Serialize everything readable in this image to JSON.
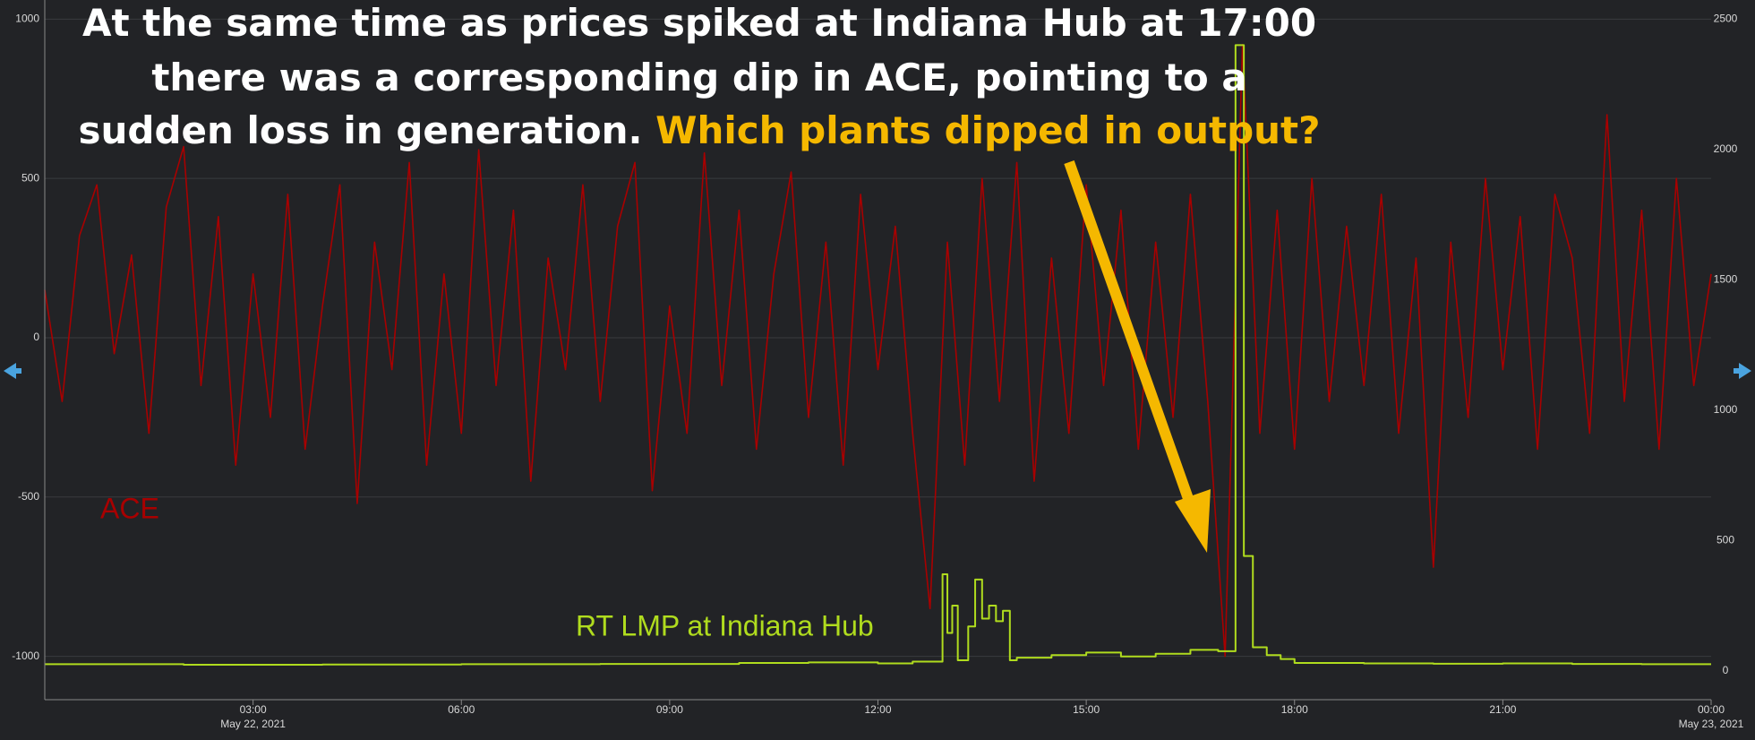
{
  "chart_data": {
    "type": "line",
    "annotation": {
      "lines": [
        "At the same time as prices spiked at Indiana Hub at 17:00",
        "there was a corresponding dip in ACE, pointing to a",
        "sudden loss in generation."
      ],
      "highlight": "Which plants dipped in output?",
      "highlight_color": "#f5b800"
    },
    "xlim": [
      0,
      24
    ],
    "xticks": [
      {
        "value": 3,
        "label": "03:00"
      },
      {
        "value": 6,
        "label": "06:00"
      },
      {
        "value": 9,
        "label": "09:00"
      },
      {
        "value": 12,
        "label": "12:00"
      },
      {
        "value": 15,
        "label": "15:00"
      },
      {
        "value": 18,
        "label": "18:00"
      },
      {
        "value": 21,
        "label": "21:00"
      },
      {
        "value": 24,
        "label": "00:00"
      }
    ],
    "xtick_sublabels": [
      {
        "value": 3,
        "label": "May 22, 2021"
      },
      {
        "value": 24,
        "label": "May 23, 2021"
      }
    ],
    "ylim": [
      -1136,
      1060
    ],
    "yticks": [
      -1000,
      -500,
      0,
      500,
      1000
    ],
    "y2lim": [
      -111,
      2573
    ],
    "y2ticks": [
      0,
      500,
      1000,
      1500,
      2000,
      2500
    ],
    "grid": true,
    "series": [
      {
        "name": "ACE",
        "color": "#a80000",
        "axis": "y",
        "step": false,
        "x": [
          0,
          0.25,
          0.5,
          0.75,
          1,
          1.25,
          1.5,
          1.75,
          2,
          2.25,
          2.5,
          2.75,
          3,
          3.25,
          3.5,
          3.75,
          4,
          4.25,
          4.5,
          4.75,
          5,
          5.25,
          5.5,
          5.75,
          6,
          6.25,
          6.5,
          6.75,
          7,
          7.25,
          7.5,
          7.75,
          8,
          8.25,
          8.5,
          8.75,
          9,
          9.25,
          9.5,
          9.75,
          10,
          10.25,
          10.5,
          10.75,
          11,
          11.25,
          11.5,
          11.75,
          12,
          12.25,
          12.5,
          12.75,
          13,
          13.25,
          13.5,
          13.75,
          14,
          14.25,
          14.5,
          14.75,
          15,
          15.25,
          15.5,
          15.75,
          16,
          16.25,
          16.5,
          16.75,
          17,
          17.25,
          17.5,
          17.75,
          18,
          18.25,
          18.5,
          18.75,
          19,
          19.25,
          19.5,
          19.75,
          20,
          20.25,
          20.5,
          20.75,
          21,
          21.25,
          21.5,
          21.75,
          22,
          22.25,
          22.5,
          22.75,
          23,
          23.25,
          23.5,
          23.75,
          24
        ],
        "values": [
          150,
          -200,
          320,
          480,
          -50,
          260,
          -300,
          410,
          600,
          -150,
          380,
          -400,
          200,
          -250,
          450,
          -350,
          100,
          480,
          -520,
          300,
          -100,
          550,
          -400,
          200,
          -300,
          590,
          -150,
          400,
          -450,
          250,
          -100,
          480,
          -200,
          350,
          550,
          -480,
          100,
          -300,
          580,
          -150,
          400,
          -350,
          200,
          520,
          -250,
          300,
          -400,
          450,
          -100,
          350,
          -300,
          -850,
          300,
          -400,
          500,
          -200,
          550,
          -450,
          250,
          -300,
          480,
          -150,
          400,
          -350,
          300,
          -250,
          450,
          -200,
          -1000,
          920,
          -300,
          400,
          -350,
          500,
          -200,
          350,
          -150,
          450,
          -300,
          250,
          -720,
          300,
          -250,
          500,
          -100,
          380,
          -350,
          450,
          250,
          -300,
          700,
          -200,
          400,
          -350,
          500,
          -150,
          200
        ]
      },
      {
        "name": "RT LMP at Indiana Hub",
        "color": "#b0dc1e",
        "axis": "y2",
        "step": true,
        "x": [
          0,
          2,
          4,
          6,
          8,
          10,
          11,
          12,
          12.5,
          12.93,
          13.0,
          13.07,
          13.15,
          13.3,
          13.4,
          13.5,
          13.6,
          13.7,
          13.8,
          13.9,
          14.0,
          14.5,
          15.0,
          15.5,
          16.0,
          16.5,
          16.9,
          17.15,
          17.27,
          17.4,
          17.6,
          17.8,
          18.0,
          19,
          20,
          21,
          22,
          23,
          24
        ],
        "values": [
          25,
          23,
          24,
          25,
          26,
          30,
          32,
          28,
          35,
          370,
          145,
          250,
          40,
          170,
          350,
          200,
          250,
          190,
          230,
          40,
          50,
          60,
          70,
          55,
          65,
          80,
          75,
          2400,
          440,
          90,
          60,
          45,
          30,
          28,
          27,
          28,
          26,
          25,
          25
        ]
      }
    ]
  }
}
